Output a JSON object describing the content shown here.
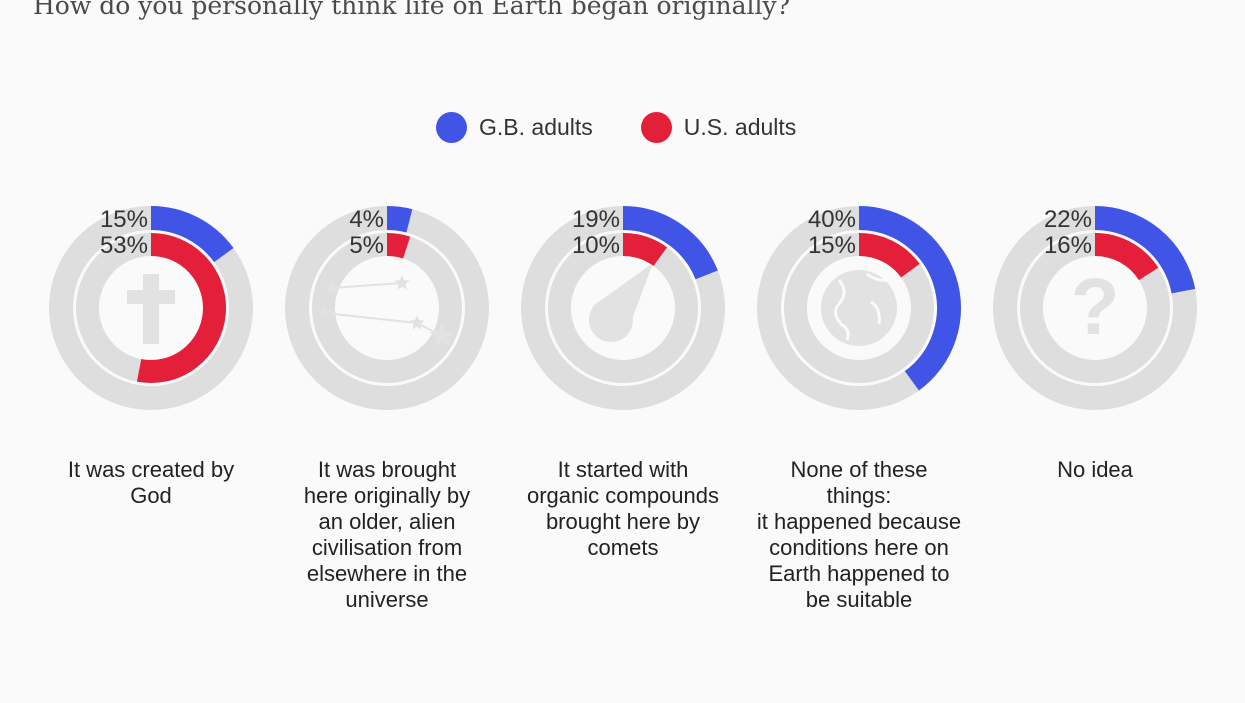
{
  "question": "How do you personally think life on Earth began originally?",
  "legend": [
    {
      "label": "G.B. adults",
      "color": "#4055e6"
    },
    {
      "label": "U.S. adults",
      "color": "#e31f3a"
    }
  ],
  "chart_data": {
    "type": "pie",
    "subtype": "nested-donut",
    "series": [
      {
        "name": "G.B. adults",
        "color": "#4055e6"
      },
      {
        "name": "U.S. adults",
        "color": "#e31f3a"
      }
    ],
    "items": [
      {
        "label_lines": [
          "It was created by",
          "God"
        ],
        "gb": 15,
        "us": 53,
        "gb_label": "15%",
        "us_label": "53%",
        "icon": "cross-icon"
      },
      {
        "label_lines": [
          "It was brought",
          "here originally by",
          "an older, alien",
          "civilisation from",
          "elsewhere in the",
          "universe"
        ],
        "gb": 4,
        "us": 5,
        "gb_label": "4%",
        "us_label": "5%",
        "icon": "stars-icon"
      },
      {
        "label_lines": [
          "It started with",
          "organic compounds",
          "brought here by",
          "comets"
        ],
        "gb": 19,
        "us": 10,
        "gb_label": "19%",
        "us_label": "10%",
        "icon": "comet-icon"
      },
      {
        "label_lines": [
          "None of these",
          "things:",
          "it happened because",
          "conditions here on",
          "Earth happened to",
          "be suitable"
        ],
        "gb": 40,
        "us": 15,
        "gb_label": "40%",
        "us_label": "15%",
        "icon": "globe-icon"
      },
      {
        "label_lines": [
          "No idea"
        ],
        "gb": 22,
        "us": 16,
        "gb_label": "22%",
        "us_label": "16%",
        "icon": "question-mark-icon"
      }
    ],
    "track_color": "#dedede",
    "icon_color": "#e2e2e2"
  }
}
